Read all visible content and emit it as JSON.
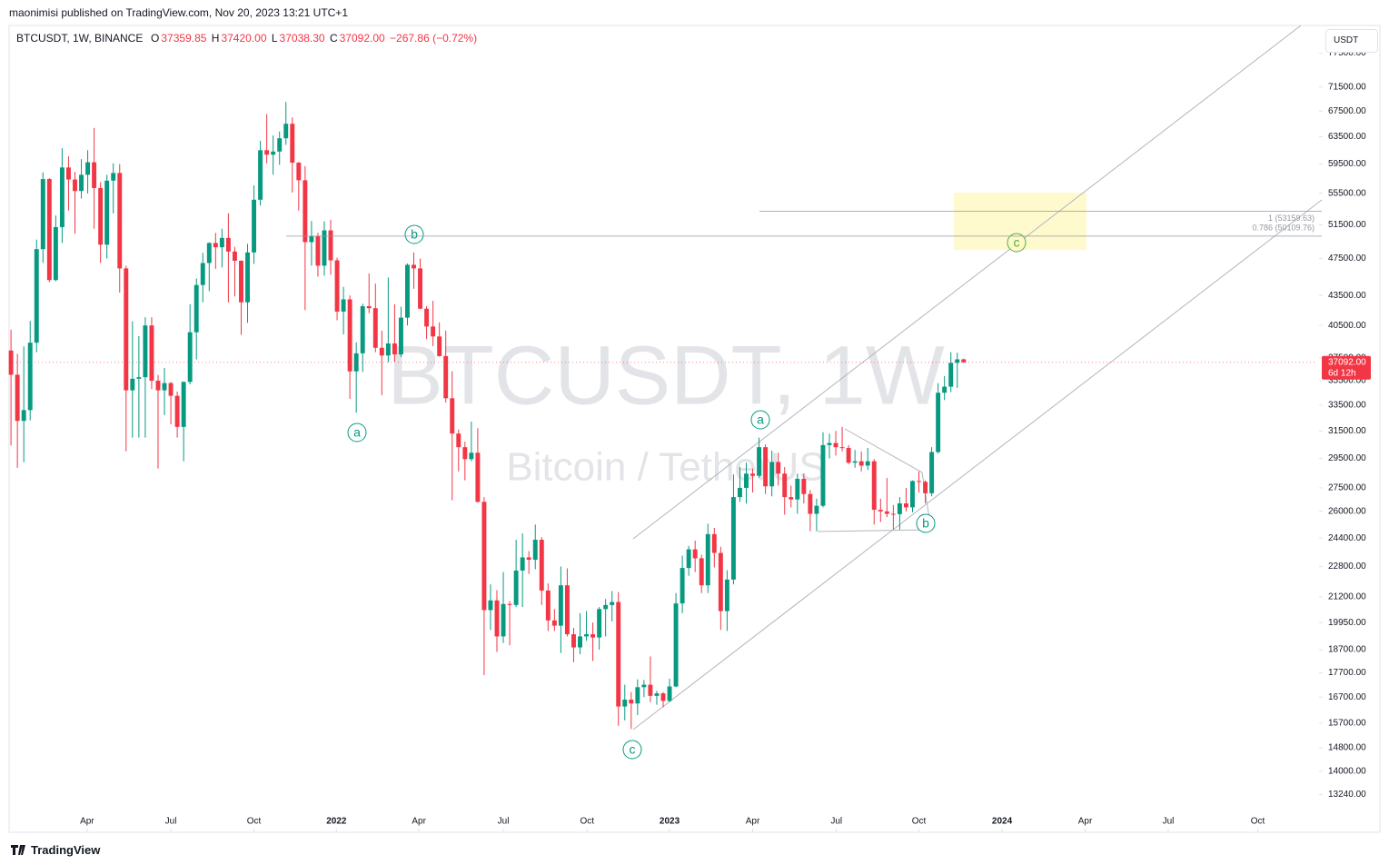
{
  "header": {
    "publisher": "maonimisi published on TradingView.com, Nov 20, 2023 13:21 UTC+1"
  },
  "chart_data": {
    "type": "candlestick",
    "legend": {
      "symbol": "BTCUSDT, 1W, BINANCE",
      "o_key": "O",
      "o": "37359.85",
      "h_key": "H",
      "h": "37420.00",
      "l_key": "L",
      "l": "37038.30",
      "c_key": "C",
      "c": "37092.00",
      "change": "−267.86 (−0.72%)"
    },
    "watermark": {
      "title": "BTCUSDT, 1W",
      "subtitle": "Bitcoin / TetherUS"
    },
    "currency": "USDT",
    "up_color": "#089981",
    "down_color": "#f23645",
    "log_scale": true,
    "ylim": [
      12100,
      82800
    ],
    "yticks": [
      {
        "value": 77500,
        "label": "77500.00"
      },
      {
        "value": 71500,
        "label": "71500.00"
      },
      {
        "value": 67500,
        "label": "67500.00"
      },
      {
        "value": 63500,
        "label": "63500.00"
      },
      {
        "value": 59500,
        "label": "59500.00"
      },
      {
        "value": 55500,
        "label": "55500.00"
      },
      {
        "value": 51500,
        "label": "51500.00"
      },
      {
        "value": 47500,
        "label": "47500.00"
      },
      {
        "value": 43500,
        "label": "43500.00"
      },
      {
        "value": 40500,
        "label": "40500.00"
      },
      {
        "value": 37500,
        "label": "37500.00"
      },
      {
        "value": 35500,
        "label": "35500.00"
      },
      {
        "value": 33500,
        "label": "33500.00"
      },
      {
        "value": 31500,
        "label": "31500.00"
      },
      {
        "value": 29500,
        "label": "29500.00"
      },
      {
        "value": 27500,
        "label": "27500.00"
      },
      {
        "value": 26000,
        "label": "26000.00"
      },
      {
        "value": 24400,
        "label": "24400.00"
      },
      {
        "value": 22800,
        "label": "22800.00"
      },
      {
        "value": 21200,
        "label": "21200.00"
      },
      {
        "value": 19950,
        "label": "19950.00"
      },
      {
        "value": 18700,
        "label": "18700.00"
      },
      {
        "value": 17700,
        "label": "17700.00"
      },
      {
        "value": 16700,
        "label": "16700.00"
      },
      {
        "value": 15700,
        "label": "15700.00"
      },
      {
        "value": 14800,
        "label": "14800.00"
      },
      {
        "value": 14000,
        "label": "14000.00"
      },
      {
        "value": 13240,
        "label": "13240.00"
      }
    ],
    "xlim": [
      -0.3,
      204.3
    ],
    "xticks": [
      {
        "value": 11.9,
        "label": "Apr"
      },
      {
        "value": 25,
        "label": "Jul"
      },
      {
        "value": 38,
        "label": "Oct"
      },
      {
        "value": 50.9,
        "label": "2022"
      },
      {
        "value": 63.8,
        "label": "Apr"
      },
      {
        "value": 77,
        "label": "Jul"
      },
      {
        "value": 90.1,
        "label": "Oct"
      },
      {
        "value": 103,
        "label": "2023"
      },
      {
        "value": 116,
        "label": "Apr"
      },
      {
        "value": 129.1,
        "label": "Jul"
      },
      {
        "value": 142,
        "label": "Oct"
      },
      {
        "value": 155,
        "label": "2024"
      },
      {
        "value": 168,
        "label": "Apr"
      },
      {
        "value": 181,
        "label": "Jul"
      },
      {
        "value": 195,
        "label": "Oct"
      }
    ],
    "candles": [
      [
        38150,
        40100,
        30420,
        36010
      ],
      [
        36010,
        37850,
        28850,
        32260
      ],
      [
        32260,
        38530,
        29240,
        33100
      ],
      [
        33100,
        40950,
        32300,
        38870
      ],
      [
        38870,
        49700,
        37990,
        48580
      ],
      [
        48580,
        58350,
        47000,
        57410
      ],
      [
        57410,
        57530,
        44900,
        45130
      ],
      [
        45130,
        52640,
        45000,
        51200
      ],
      [
        51200,
        61780,
        49300,
        59020
      ],
      [
        59020,
        60600,
        53270,
        57350
      ],
      [
        57350,
        58400,
        50400,
        55800
      ],
      [
        55800,
        60200,
        54800,
        58000
      ],
      [
        58000,
        61500,
        55470,
        59750
      ],
      [
        59750,
        64850,
        51000,
        56200
      ],
      [
        56200,
        57000,
        47000,
        49100
      ],
      [
        49100,
        58000,
        47500,
        57200
      ],
      [
        57200,
        59600,
        52900,
        58250
      ],
      [
        58250,
        59500,
        43800,
        46400
      ],
      [
        46400,
        46700,
        30000,
        34700
      ],
      [
        34700,
        40900,
        31000,
        35670
      ],
      [
        35670,
        39480,
        31000,
        35800
      ],
      [
        35800,
        41300,
        31000,
        40500
      ],
      [
        40500,
        41300,
        34800,
        35500
      ],
      [
        35500,
        36000,
        28800,
        34700
      ],
      [
        34700,
        36600,
        32700,
        35300
      ],
      [
        35300,
        35400,
        32000,
        34250
      ],
      [
        34250,
        34600,
        31000,
        31800
      ],
      [
        31800,
        35450,
        29300,
        35400
      ],
      [
        35400,
        42600,
        35200,
        39850
      ],
      [
        39850,
        45300,
        37350,
        44600
      ],
      [
        44600,
        48150,
        42800,
        47000
      ],
      [
        47000,
        49380,
        43950,
        49300
      ],
      [
        49300,
        50500,
        46350,
        48800
      ],
      [
        48800,
        51000,
        46500,
        49900
      ],
      [
        49900,
        52900,
        42800,
        48300
      ],
      [
        48300,
        48850,
        43400,
        47250
      ],
      [
        47250,
        47300,
        39600,
        42800
      ],
      [
        42800,
        49200,
        40750,
        48200
      ],
      [
        48200,
        56550,
        46900,
        54650
      ],
      [
        54650,
        62900,
        53900,
        61500
      ],
      [
        61500,
        67000,
        59600,
        60850
      ],
      [
        60850,
        63700,
        58000,
        61300
      ],
      [
        61300,
        64300,
        59400,
        63270
      ],
      [
        63270,
        69000,
        62300,
        65500
      ],
      [
        65500,
        66500,
        55600,
        59700
      ],
      [
        59700,
        59800,
        53250,
        57250
      ],
      [
        57250,
        59200,
        42000,
        49400
      ],
      [
        49400,
        51950,
        46700,
        50100
      ],
      [
        50100,
        50500,
        45500,
        46700
      ],
      [
        46700,
        51900,
        45600,
        50800
      ],
      [
        50800,
        52100,
        45700,
        47300
      ],
      [
        47300,
        47600,
        41000,
        41860
      ],
      [
        41860,
        44400,
        39650,
        43100
      ],
      [
        43100,
        43500,
        34000,
        36300
      ],
      [
        36300,
        38900,
        32900,
        37900
      ],
      [
        37900,
        42650,
        36250,
        42400
      ],
      [
        42400,
        45850,
        41700,
        42200
      ],
      [
        42200,
        44750,
        38000,
        38400
      ],
      [
        38400,
        40000,
        34300,
        37700
      ],
      [
        37700,
        45400,
        37100,
        38800
      ],
      [
        38800,
        42600,
        37150,
        37800
      ],
      [
        37800,
        42350,
        37550,
        41260
      ],
      [
        41260,
        46950,
        40500,
        46800
      ],
      [
        46800,
        48200,
        44200,
        46400
      ],
      [
        46400,
        47500,
        42100,
        42150
      ],
      [
        42150,
        42400,
        39200,
        40400
      ],
      [
        40400,
        42950,
        38550,
        39450
      ],
      [
        39450,
        40800,
        37600,
        37650
      ],
      [
        37650,
        40000,
        33700,
        34050
      ],
      [
        34050,
        36300,
        26700,
        31300
      ],
      [
        31300,
        31600,
        28600,
        30300
      ],
      [
        30300,
        30700,
        28000,
        29450
      ],
      [
        29450,
        32200,
        29300,
        29900
      ],
      [
        29900,
        31700,
        26550,
        26600
      ],
      [
        26600,
        26900,
        17600,
        20550
      ],
      [
        20550,
        21850,
        19600,
        21030
      ],
      [
        21030,
        21550,
        18600,
        19300
      ],
      [
        19300,
        22500,
        19000,
        20850
      ],
      [
        20850,
        21000,
        18900,
        20800
      ],
      [
        20800,
        24300,
        20700,
        22580
      ],
      [
        22580,
        24670,
        20700,
        23300
      ],
      [
        23300,
        23650,
        22400,
        23170
      ],
      [
        23170,
        25200,
        22650,
        24300
      ],
      [
        24300,
        24450,
        20800,
        21530
      ],
      [
        21530,
        21900,
        19550,
        20050
      ],
      [
        20050,
        20600,
        19550,
        19800
      ],
      [
        19800,
        22800,
        18550,
        21800
      ],
      [
        21800,
        22700,
        19300,
        19400
      ],
      [
        19400,
        19700,
        18150,
        18800
      ],
      [
        18800,
        20400,
        18500,
        19300
      ],
      [
        19300,
        20500,
        19100,
        19400
      ],
      [
        19400,
        19950,
        18200,
        19250
      ],
      [
        19250,
        20700,
        18700,
        20600
      ],
      [
        20600,
        21100,
        19300,
        20800
      ],
      [
        20800,
        21500,
        20000,
        20950
      ],
      [
        20950,
        21450,
        15600,
        16330
      ],
      [
        16330,
        17200,
        15800,
        16600
      ],
      [
        16600,
        16900,
        15480,
        16450
      ],
      [
        16450,
        17420,
        16000,
        17100
      ],
      [
        17100,
        17400,
        16700,
        17200
      ],
      [
        17200,
        18400,
        16500,
        16750
      ],
      [
        16750,
        16950,
        16400,
        16850
      ],
      [
        16850,
        16900,
        16300,
        16550
      ],
      [
        16550,
        17450,
        16500,
        17130
      ],
      [
        17130,
        21400,
        17100,
        20880
      ],
      [
        20880,
        23400,
        20400,
        22720
      ],
      [
        22720,
        23950,
        22300,
        23750
      ],
      [
        23750,
        24250,
        22500,
        23250
      ],
      [
        23250,
        23450,
        21400,
        21800
      ],
      [
        21800,
        25250,
        21400,
        24630
      ],
      [
        24630,
        25000,
        22750,
        23550
      ],
      [
        23550,
        23900,
        19600,
        20500
      ],
      [
        20500,
        22600,
        19550,
        22100
      ],
      [
        22100,
        28400,
        21850,
        26900
      ],
      [
        26900,
        28900,
        26600,
        27500
      ],
      [
        27500,
        29200,
        26500,
        28450
      ],
      [
        28450,
        28800,
        27200,
        28300
      ],
      [
        28300,
        31000,
        28150,
        30300
      ],
      [
        30300,
        30500,
        27100,
        27600
      ],
      [
        27600,
        30050,
        26950,
        29250
      ],
      [
        29250,
        29900,
        27650,
        28450
      ],
      [
        28450,
        28900,
        25800,
        26900
      ],
      [
        26900,
        27650,
        26250,
        26750
      ],
      [
        26750,
        28450,
        25850,
        28100
      ],
      [
        28100,
        28450,
        26500,
        27100
      ],
      [
        27100,
        27350,
        24800,
        25850
      ],
      [
        25850,
        26800,
        24800,
        26350
      ],
      [
        26350,
        31400,
        26250,
        30450
      ],
      [
        30450,
        31300,
        29500,
        30600
      ],
      [
        30600,
        31500,
        29700,
        30300
      ],
      [
        30300,
        31800,
        30000,
        30250
      ],
      [
        30250,
        30450,
        29100,
        29200
      ],
      [
        29200,
        30100,
        28850,
        29300
      ],
      [
        29300,
        29990,
        28600,
        29000
      ],
      [
        29000,
        30250,
        28700,
        29300
      ],
      [
        29300,
        29450,
        25200,
        26100
      ],
      [
        26100,
        26800,
        25350,
        26000
      ],
      [
        26000,
        28150,
        25650,
        25850
      ],
      [
        25850,
        26400,
        24900,
        25830
      ],
      [
        25830,
        26900,
        24900,
        26500
      ],
      [
        26500,
        27500,
        26000,
        26250
      ],
      [
        26250,
        28000,
        25950,
        27950
      ],
      [
        27950,
        28600,
        27200,
        27900
      ],
      [
        27900,
        28000,
        26500,
        27150
      ],
      [
        27150,
        30300,
        26950,
        29950
      ],
      [
        29950,
        35300,
        29850,
        34500
      ],
      [
        34500,
        35900,
        33900,
        35000
      ],
      [
        35000,
        38000,
        34550,
        37050
      ],
      [
        37050,
        37950,
        34900,
        37360
      ],
      [
        37359.85,
        37420,
        37038.3,
        37092
      ]
    ],
    "last_price": {
      "value": 37092,
      "label": "37092.00"
    },
    "countdown": "6d 12h",
    "fib_levels": [
      {
        "value": 53159.63,
        "label": "1 (53159.63)"
      },
      {
        "value": 50109.76,
        "label": "0.786 (50109.76)"
      }
    ],
    "wave_labels": [
      "a",
      "b",
      "c",
      "a",
      "b",
      "c"
    ]
  },
  "footer": {
    "brand": "TradingView"
  }
}
